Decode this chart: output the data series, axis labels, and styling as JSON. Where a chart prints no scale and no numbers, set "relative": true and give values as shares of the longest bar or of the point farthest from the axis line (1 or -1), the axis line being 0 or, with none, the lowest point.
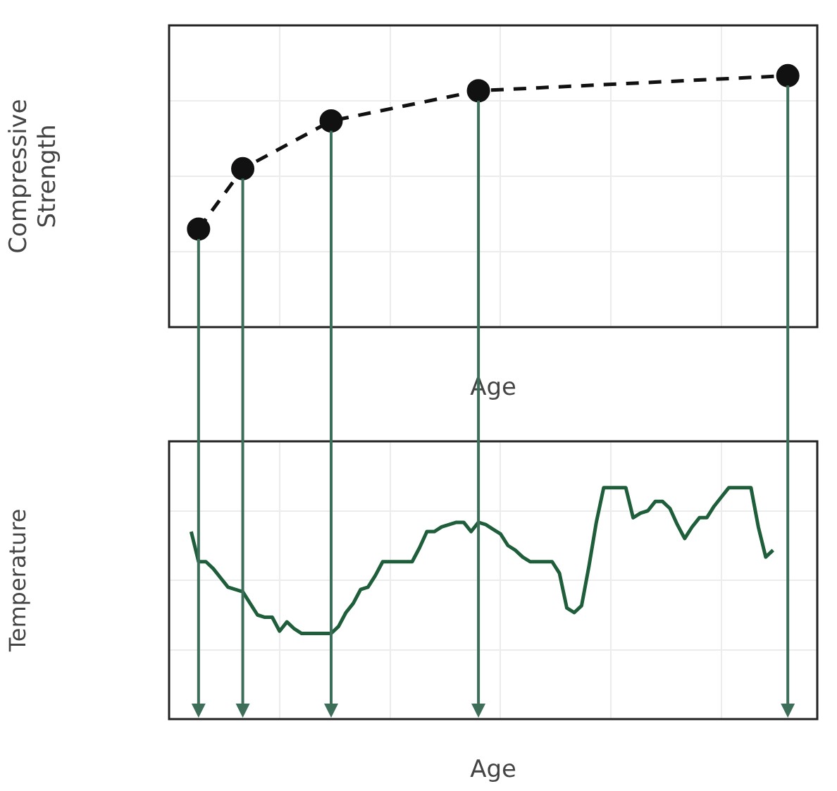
{
  "chart_data": [
    {
      "type": "line",
      "xlabel": "Age",
      "ylabel": "Compressive Strength",
      "relative": true,
      "grid": true,
      "legend": false,
      "marker": "circle",
      "line_style": "dashed",
      "categories": [
        null,
        null,
        null,
        null,
        null,
        null,
        null,
        null,
        null,
        null,
        null,
        null,
        null,
        null,
        null,
        null,
        null,
        null,
        null,
        null,
        null,
        null,
        null,
        null,
        null,
        null,
        null,
        null,
        null,
        null,
        null,
        null,
        null,
        null,
        null,
        null,
        null,
        null,
        null,
        null,
        null,
        null,
        null,
        null,
        null,
        null,
        null,
        null,
        null,
        null,
        null,
        null,
        null,
        null,
        null,
        null,
        null,
        null,
        null,
        null,
        null,
        null,
        null,
        null,
        null,
        null,
        null,
        null,
        null,
        null,
        null,
        null,
        null,
        null,
        null,
        null,
        null,
        null,
        null,
        null,
        null,
        null,
        null,
        null,
        null,
        null,
        null,
        null,
        null
      ],
      "series": [
        {
          "color": "#111111",
          "values": [
            null,
            null,
            null,
            null,
            0.39,
            null,
            null,
            null,
            null,
            null,
            0.63,
            null,
            null,
            null,
            null,
            null,
            null,
            null,
            null,
            null,
            null,
            null,
            0.82,
            null,
            null,
            null,
            null,
            null,
            null,
            null,
            null,
            null,
            null,
            null,
            null,
            null,
            null,
            null,
            null,
            null,
            null,
            null,
            0.94,
            null,
            null,
            null,
            null,
            null,
            null,
            null,
            null,
            null,
            null,
            null,
            null,
            null,
            null,
            null,
            null,
            null,
            null,
            null,
            null,
            null,
            null,
            null,
            null,
            null,
            null,
            null,
            null,
            null,
            null,
            null,
            null,
            null,
            null,
            null,
            null,
            null,
            null,
            null,
            null,
            null,
            1,
            null,
            null,
            null,
            null
          ]
        }
      ]
    },
    {
      "type": "line",
      "xlabel": "Age",
      "ylabel": "Temperature",
      "relative": true,
      "grid": true,
      "legend": false,
      "marker": "none",
      "line_style": "solid",
      "categories": [
        null,
        null,
        null,
        null,
        null,
        null,
        null,
        null,
        null,
        null,
        null,
        null,
        null,
        null,
        null,
        null,
        null,
        null,
        null,
        null,
        null,
        null,
        null,
        null,
        null,
        null,
        null,
        null,
        null,
        null,
        null,
        null,
        null,
        null,
        null,
        null,
        null,
        null,
        null,
        null,
        null,
        null,
        null,
        null,
        null,
        null,
        null,
        null,
        null,
        null,
        null,
        null,
        null,
        null,
        null,
        null,
        null,
        null,
        null,
        null,
        null,
        null,
        null,
        null,
        null,
        null,
        null,
        null,
        null,
        null,
        null,
        null,
        null,
        null,
        null,
        null,
        null,
        null,
        null,
        null,
        null,
        null,
        null,
        null,
        null,
        null,
        null,
        null,
        null
      ],
      "series": [
        {
          "color": "#1f5e3a",
          "values": [
            null,
            null,
            null,
            0.81,
            0.68,
            0.68,
            0.65,
            0.61,
            0.57,
            0.56,
            0.55,
            0.5,
            0.45,
            0.44,
            0.44,
            0.38,
            0.42,
            0.39,
            0.37,
            0.37,
            0.37,
            0.37,
            0.37,
            0.4,
            0.46,
            0.5,
            0.56,
            0.57,
            0.62,
            0.68,
            0.68,
            0.68,
            0.68,
            0.68,
            0.74,
            0.81,
            0.81,
            0.83,
            0.84,
            0.85,
            0.85,
            0.81,
            0.85,
            0.84,
            0.82,
            0.8,
            0.75,
            0.73,
            0.7,
            0.68,
            0.68,
            0.68,
            0.68,
            0.63,
            0.48,
            0.46,
            0.49,
            0.66,
            0.85,
            1,
            1,
            1,
            1,
            0.87,
            0.89,
            0.9,
            0.94,
            0.94,
            0.91,
            0.84,
            0.78,
            0.83,
            0.87,
            0.87,
            0.92,
            0.96,
            1,
            1,
            1,
            1,
            0.83,
            0.7,
            0.73,
            null,
            null,
            null,
            null,
            null,
            null
          ]
        }
      ]
    }
  ]
}
